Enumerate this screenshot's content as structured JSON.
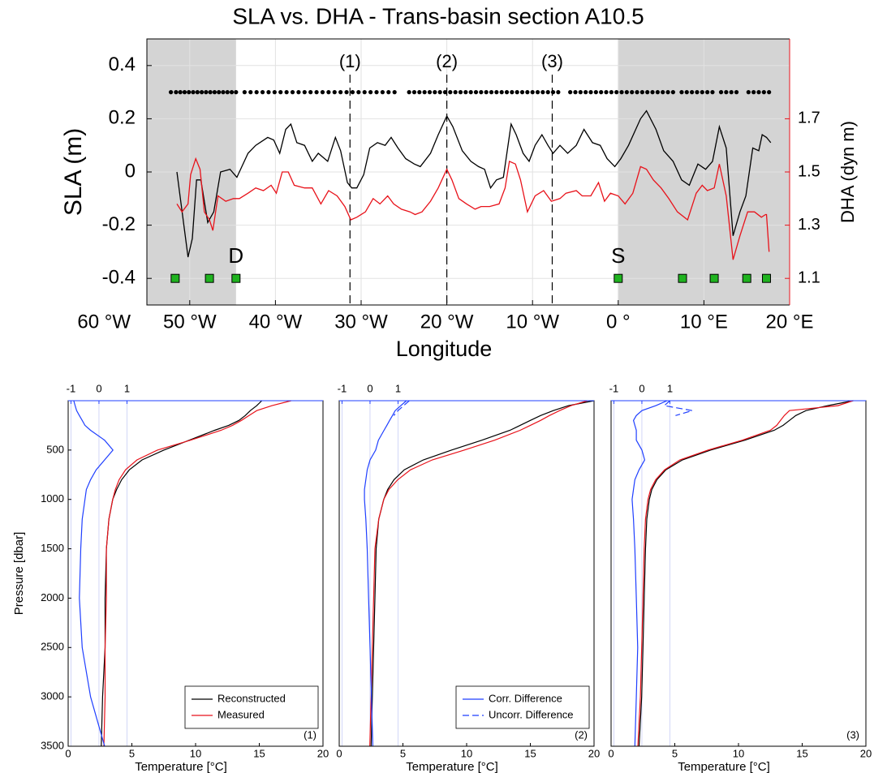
{
  "chart_data": [
    {
      "type": "line",
      "title": "SLA vs. DHA - Trans-basin section A10.5",
      "xlabel": "Longitude",
      "ylabel": "SLA (m)",
      "y2label": "DHA (dyn m)",
      "xlim": [
        -55,
        20
      ],
      "xticks": [
        {
          "value": -60,
          "label": "60 °W"
        },
        {
          "value": -50,
          "label": "50 °W"
        },
        {
          "value": -40,
          "label": "40 °W"
        },
        {
          "value": -30,
          "label": "30 °W"
        },
        {
          "value": -20,
          "label": "20 °W"
        },
        {
          "value": -10,
          "label": "10 °W"
        },
        {
          "value": 0,
          "label": "0 °"
        },
        {
          "value": 10,
          "label": "10 °E"
        },
        {
          "value": 20,
          "label": "20 °E"
        }
      ],
      "ylim": [
        -0.5,
        0.5
      ],
      "yticks": [
        -0.4,
        -0.2,
        0,
        0.2,
        0.4
      ],
      "y2lim": [
        1.0,
        2.0
      ],
      "y2ticks": [
        1.1,
        1.3,
        1.5,
        1.7
      ],
      "y2color": "#e8121a",
      "grid": true,
      "shaded": [
        [
          -55,
          -44.6
        ],
        [
          0,
          20
        ]
      ],
      "sections": [
        {
          "label": "(1)",
          "x": -31.3
        },
        {
          "label": "(2)",
          "x": -20.0
        },
        {
          "label": "(3)",
          "x": -7.7
        }
      ],
      "series": [
        {
          "color": "#000000",
          "x": [
            -51.5,
            -50.2,
            -49.7,
            -49.2,
            -48.7,
            -47.9,
            -47.2,
            -46.4,
            -45.3,
            -44.5,
            -43.2,
            -42.3,
            -40.9,
            -40.2,
            -39.5,
            -38.8,
            -38.2,
            -37.5,
            -36.6,
            -35.7,
            -35.0,
            -33.9,
            -33.0,
            -32.4,
            -31.6,
            -31.1,
            -30.5,
            -29.7,
            -29.0,
            -28.1,
            -27.2,
            -26.5,
            -25.7,
            -24.8,
            -23.8,
            -23.1,
            -21.9,
            -21.0,
            -20.0,
            -19.3,
            -18.2,
            -17.2,
            -16.3,
            -15.6,
            -14.9,
            -14.2,
            -13.4,
            -12.5,
            -11.9,
            -11.1,
            -10.4,
            -9.7,
            -8.9,
            -8.2,
            -7.6,
            -6.8,
            -5.9,
            -4.9,
            -4.0,
            -3.0,
            -2.1,
            -1.3,
            -0.4,
            0.3,
            1.2,
            2.6,
            3.3,
            4.4,
            5.3,
            6.4,
            7.4,
            8.3,
            9.3,
            10.2,
            11.0,
            11.8,
            12.6,
            13.4,
            14.2,
            14.9,
            15.7,
            16.4,
            16.8,
            17.3,
            17.8
          ],
          "values": [
            0.0,
            -0.32,
            -0.25,
            -0.03,
            -0.03,
            -0.19,
            -0.15,
            0.0,
            0.01,
            -0.02,
            0.07,
            0.1,
            0.13,
            0.12,
            0.07,
            0.16,
            0.18,
            0.11,
            0.1,
            0.04,
            0.07,
            0.04,
            0.13,
            0.08,
            -0.04,
            -0.06,
            -0.06,
            -0.01,
            0.09,
            0.11,
            0.1,
            0.13,
            0.09,
            0.05,
            0.03,
            0.02,
            0.07,
            0.14,
            0.21,
            0.17,
            0.08,
            0.04,
            0.02,
            0.01,
            -0.06,
            -0.03,
            -0.02,
            0.18,
            0.14,
            0.07,
            0.04,
            0.1,
            0.14,
            0.1,
            0.07,
            0.1,
            0.07,
            0.1,
            0.16,
            0.11,
            0.1,
            0.05,
            0.02,
            0.05,
            0.1,
            0.2,
            0.23,
            0.16,
            0.08,
            0.04,
            -0.03,
            -0.05,
            0.03,
            0.01,
            0.04,
            0.17,
            0.09,
            -0.24,
            -0.15,
            -0.09,
            0.09,
            0.08,
            0.14,
            0.13,
            0.11
          ]
        },
        {
          "color": "#e8121a",
          "axis": "y2",
          "x": [
            -51.5,
            -50.9,
            -50.2,
            -49.9,
            -49.3,
            -48.8,
            -48.3,
            -47.7,
            -47.3,
            -46.7,
            -45.8,
            -44.9,
            -44.2,
            -43.2,
            -42.3,
            -41.4,
            -40.5,
            -39.9,
            -39.2,
            -38.5,
            -37.8,
            -36.6,
            -35.7,
            -34.7,
            -33.8,
            -32.8,
            -31.9,
            -31.2,
            -30.5,
            -29.5,
            -28.6,
            -27.8,
            -26.9,
            -26.2,
            -25.3,
            -24.3,
            -23.7,
            -22.9,
            -21.9,
            -21.0,
            -20.0,
            -19.4,
            -18.6,
            -17.7,
            -16.7,
            -16.0,
            -15.0,
            -13.9,
            -13.2,
            -12.7,
            -12.0,
            -11.4,
            -10.6,
            -9.7,
            -8.7,
            -7.8,
            -6.8,
            -6.1,
            -4.9,
            -4.2,
            -3.2,
            -2.3,
            -1.6,
            -0.9,
            0.0,
            0.8,
            1.7,
            2.6,
            3.3,
            4.1,
            5.0,
            5.9,
            6.9,
            8.1,
            9.1,
            9.8,
            10.4,
            11.2,
            11.8,
            12.6,
            13.4,
            14.2,
            15.1,
            15.9,
            16.7,
            17.2,
            17.3,
            17.6
          ],
          "values": [
            1.38,
            1.35,
            1.38,
            1.49,
            1.55,
            1.51,
            1.35,
            1.32,
            1.28,
            1.41,
            1.39,
            1.4,
            1.4,
            1.42,
            1.44,
            1.43,
            1.45,
            1.42,
            1.5,
            1.5,
            1.45,
            1.44,
            1.44,
            1.38,
            1.43,
            1.41,
            1.37,
            1.32,
            1.33,
            1.35,
            1.4,
            1.38,
            1.41,
            1.38,
            1.36,
            1.35,
            1.34,
            1.35,
            1.39,
            1.44,
            1.51,
            1.47,
            1.4,
            1.38,
            1.36,
            1.37,
            1.37,
            1.38,
            1.44,
            1.54,
            1.53,
            1.47,
            1.35,
            1.41,
            1.43,
            1.39,
            1.4,
            1.42,
            1.43,
            1.41,
            1.41,
            1.46,
            1.39,
            1.42,
            1.41,
            1.38,
            1.42,
            1.52,
            1.51,
            1.47,
            1.44,
            1.4,
            1.35,
            1.32,
            1.42,
            1.45,
            1.43,
            1.44,
            1.53,
            1.41,
            1.17,
            1.26,
            1.35,
            1.35,
            1.33,
            1.34,
            1.34,
            1.2
          ]
        }
      ],
      "stations": {
        "color": "#000000",
        "value": 0.3,
        "x": [
          -52.2,
          -51.6,
          -51.1,
          -50.6,
          -50.1,
          -49.6,
          -49.1,
          -48.6,
          -48.1,
          -47.6,
          -47.1,
          -46.6,
          -46.1,
          -45.6,
          -45.1,
          -44.6,
          -43.6,
          -42.9,
          -42.2,
          -41.5,
          -40.8,
          -40.1,
          -39.4,
          -38.7,
          -38.0,
          -37.3,
          -36.6,
          -35.9,
          -35.2,
          -34.5,
          -33.8,
          -33.1,
          -32.4,
          -31.7,
          -31.0,
          -30.3,
          -29.6,
          -28.9,
          -28.2,
          -27.5,
          -26.8,
          -26.1,
          -24.4,
          -23.8,
          -23.2,
          -22.6,
          -22.0,
          -21.4,
          -20.8,
          -20.2,
          -19.6,
          -19.0,
          -18.4,
          -17.8,
          -17.2,
          -16.6,
          -16.0,
          -15.4,
          -14.8,
          -14.2,
          -13.6,
          -13.0,
          -12.4,
          -11.8,
          -11.2,
          -10.6,
          -10.0,
          -9.4,
          -8.8,
          -8.2,
          -7.6,
          -7.0,
          -5.6,
          -5.0,
          -4.4,
          -3.8,
          -3.2,
          -2.6,
          -2.0,
          -1.4,
          -0.8,
          -0.2,
          0.4,
          1.0,
          1.6,
          2.2,
          2.8,
          3.4,
          4.0,
          4.6,
          5.2,
          5.8,
          6.4,
          7.4,
          8.0,
          8.6,
          9.2,
          9.8,
          10.4,
          11.0,
          12.0,
          12.6,
          13.2,
          13.8,
          15.2,
          15.8,
          16.4,
          17.0,
          17.6
        ]
      },
      "sites": {
        "color": "#1fb31f",
        "value": -0.4,
        "x": [
          -51.7,
          -47.7,
          -44.6,
          0.0,
          7.5,
          11.2,
          15.0,
          17.3
        ]
      },
      "annotations": [
        {
          "text": "D",
          "x": -44.6
        },
        {
          "text": "S",
          "x": 0.0
        }
      ]
    },
    {
      "type": "profile",
      "panel_label": "(1)",
      "ylabel": "Pressure [dbar]",
      "xlabel": "Temperature [°C]",
      "y": [
        0,
        50,
        100,
        150,
        200,
        250,
        300,
        400,
        500,
        600,
        700,
        800,
        900,
        1000,
        1200,
        1500,
        2000,
        2500,
        3000,
        3500
      ],
      "ylim": [
        3500,
        0
      ],
      "yticks": [
        500,
        1000,
        1500,
        2000,
        2500,
        3000,
        3500
      ],
      "xlim": [
        0,
        20
      ],
      "xticks": [
        0,
        5,
        10,
        15,
        20
      ],
      "x2lim": [
        -1.1,
        8
      ],
      "x2ticks": [
        -1,
        0,
        1
      ],
      "x2color": "#1f3fff",
      "legend": "lower right",
      "series": [
        {
          "name": "Reconstructed",
          "color": "#000000",
          "values": [
            15.2,
            14.8,
            14.3,
            13.9,
            13.4,
            12.6,
            11.5,
            9.5,
            7.5,
            5.8,
            4.8,
            4.2,
            3.8,
            3.5,
            3.2,
            3.0,
            2.9,
            2.9,
            2.7,
            2.6
          ]
        },
        {
          "name": "Measured",
          "color": "#e8121a",
          "values": [
            17.5,
            16.0,
            14.8,
            14.2,
            13.6,
            12.9,
            12.0,
            9.6,
            7.0,
            5.4,
            4.5,
            4.0,
            3.7,
            3.5,
            3.2,
            3.0,
            3.0,
            2.9,
            2.9,
            2.8
          ]
        },
        {
          "color": "#1f3fff",
          "axis": "x2",
          "values": [
            -0.9,
            -0.85,
            -0.8,
            -0.7,
            -0.6,
            -0.5,
            -0.3,
            0.2,
            0.5,
            0.2,
            -0.1,
            -0.3,
            -0.45,
            -0.5,
            -0.6,
            -0.65,
            -0.7,
            -0.6,
            -0.3,
            0.2
          ]
        }
      ]
    },
    {
      "type": "profile",
      "panel_label": "(2)",
      "xlabel": "Temperature [°C]",
      "y": [
        0,
        50,
        100,
        150,
        200,
        250,
        300,
        400,
        500,
        600,
        700,
        800,
        900,
        1000,
        1200,
        1500,
        2000,
        2500,
        3000,
        3500
      ],
      "ylim": [
        3500,
        0
      ],
      "xlim": [
        0,
        20
      ],
      "xticks": [
        0,
        5,
        10,
        15,
        20
      ],
      "x2lim": [
        -1.1,
        8
      ],
      "x2ticks": [
        -1,
        0,
        1
      ],
      "x2color": "#1f3fff",
      "legend": "lower right",
      "series": [
        {
          "color": "#000000",
          "values": [
            20,
            18,
            16.8,
            15.8,
            15,
            14.2,
            13.4,
            11.2,
            8.8,
            6.6,
            5.1,
            4.3,
            3.8,
            3.5,
            3.1,
            2.9,
            2.8,
            2.7,
            2.6,
            2.5
          ]
        },
        {
          "color": "#e8121a",
          "values": [
            19.5,
            18.2,
            17.3,
            16.5,
            15.8,
            15,
            14.2,
            12.2,
            9.8,
            7.3,
            5.6,
            4.6,
            3.9,
            3.5,
            3.1,
            2.8,
            2.7,
            2.6,
            2.5,
            2.4
          ]
        },
        {
          "name": "Corr. Difference",
          "color": "#1f3fff",
          "axis": "x2",
          "values": [
            1.3,
            1.1,
            0.9,
            0.8,
            0.7,
            0.6,
            0.5,
            0.3,
            0.2,
            0.0,
            -0.1,
            -0.15,
            -0.2,
            -0.2,
            -0.15,
            -0.1,
            -0.05,
            0.0,
            0.05,
            0.1
          ]
        },
        {
          "name": "Uncorr. Difference",
          "color": "#1f3fff",
          "axis": "x2",
          "dash": true,
          "values": [
            1.4,
            1.2,
            1.0,
            0.85,
            null,
            null,
            null,
            null,
            null,
            null,
            null,
            null,
            null,
            null,
            null,
            null,
            null,
            null,
            null,
            null
          ]
        }
      ]
    },
    {
      "type": "profile",
      "panel_label": "(3)",
      "xlabel": "Temperature [°C]",
      "y": [
        0,
        50,
        100,
        150,
        200,
        250,
        300,
        400,
        500,
        600,
        700,
        800,
        900,
        1000,
        1200,
        1500,
        2000,
        2500,
        3000,
        3500
      ],
      "ylim": [
        3500,
        0
      ],
      "xlim": [
        0,
        20
      ],
      "xticks": [
        0,
        5,
        10,
        15,
        20
      ],
      "x2lim": [
        -1.1,
        8
      ],
      "x2ticks": [
        -1,
        0,
        1
      ],
      "x2color": "#1f3fff",
      "series": [
        {
          "color": "#000000",
          "values": [
            19,
            17,
            15.3,
            14.5,
            14,
            13.5,
            12.8,
            10.5,
            7.8,
            5.6,
            4.3,
            3.6,
            3.2,
            3.0,
            2.8,
            2.7,
            2.6,
            2.5,
            2.4,
            2.2
          ]
        },
        {
          "color": "#e8121a",
          "values": [
            19,
            17.8,
            14,
            13.6,
            13.3,
            13,
            12.5,
            10.3,
            7.6,
            5.4,
            4.2,
            3.5,
            3.1,
            2.9,
            2.7,
            2.6,
            2.5,
            2.4,
            2.3,
            2.1
          ]
        },
        {
          "color": "#1f3fff",
          "axis": "x2",
          "values": [
            0.9,
            0.5,
            0.0,
            -0.2,
            -0.3,
            -0.25,
            -0.2,
            -0.2,
            0.0,
            0.1,
            -0.1,
            -0.25,
            -0.3,
            -0.35,
            -0.3,
            -0.25,
            -0.2,
            -0.15,
            -0.2,
            -0.25
          ]
        },
        {
          "color": "#1f3fff",
          "axis": "x2",
          "dash": true,
          "values": [
            1.0,
            0.8,
            1.8,
            1.2,
            null,
            null,
            null,
            null,
            null,
            null,
            null,
            null,
            null,
            null,
            null,
            null,
            null,
            null,
            null,
            null
          ]
        }
      ]
    }
  ]
}
